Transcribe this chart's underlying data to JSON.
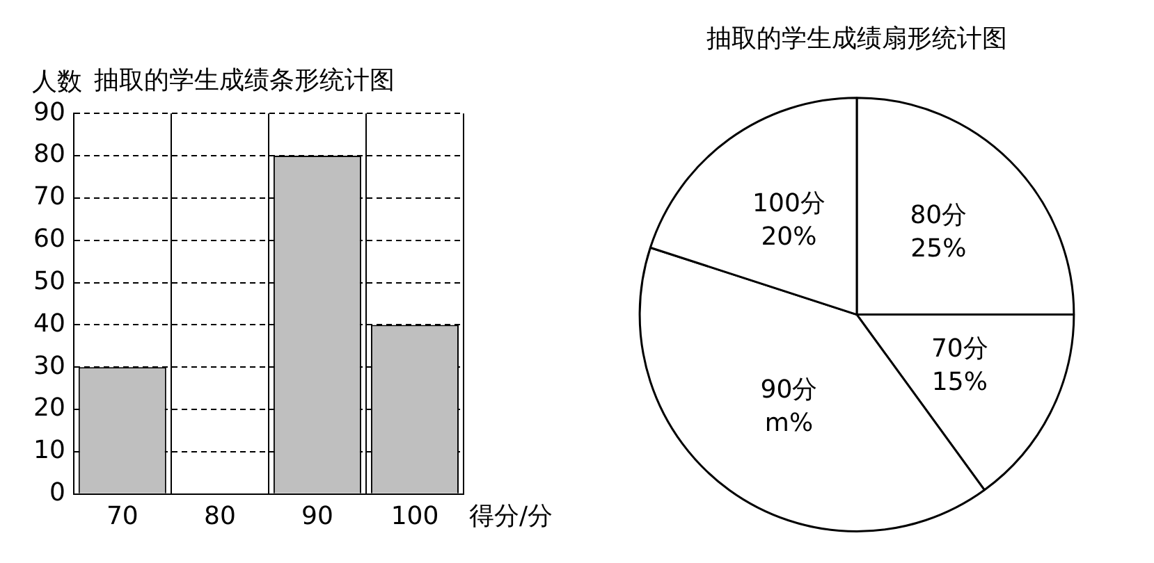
{
  "chart_data": [
    {
      "type": "bar",
      "title": "抽取的学生成绩条形统计图",
      "xlabel": "得分/分",
      "ylabel": "人数",
      "categories": [
        "70",
        "80",
        "90",
        "100"
      ],
      "values": [
        30,
        null,
        80,
        40
      ],
      "color": "#bfbfbf",
      "ylim": [
        0,
        90
      ],
      "yticks": [
        0,
        10,
        20,
        30,
        40,
        50,
        60,
        70,
        80,
        90
      ],
      "grid": true,
      "legend": false
    },
    {
      "type": "pie",
      "title": "抽取的学生成绩扇形统计图",
      "categories": [
        "80分",
        "70分",
        "90分",
        "100分"
      ],
      "values": [
        25,
        15,
        40,
        20
      ],
      "colors": [
        "#ffffff",
        "#ffffff",
        "#ffffff",
        "#ffffff"
      ],
      "value_labels": [
        "25%",
        "15%",
        "m%",
        "20%"
      ],
      "legend": false
    }
  ]
}
